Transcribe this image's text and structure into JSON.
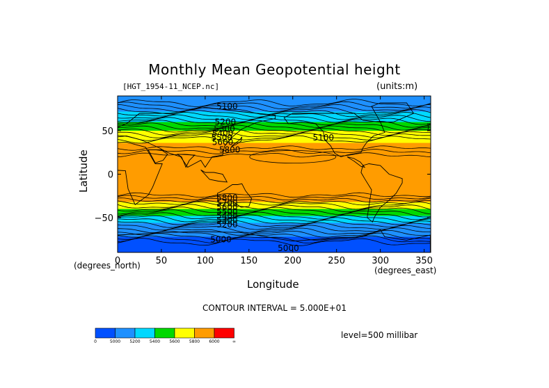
{
  "chart_data": {
    "type": "heatmap",
    "title": "Monthly Mean Geopotential height",
    "dataset": "[HGT_1954-11_NCEP.nc]",
    "units": "(units:m)",
    "xlabel": "Longitude",
    "xunits": "(degrees_east)",
    "ylabel": "Latitude",
    "yunits": "(degrees_north)",
    "xlim": [
      0,
      357.5
    ],
    "ylim": [
      -90,
      90
    ],
    "xticks": [
      0,
      50,
      100,
      150,
      200,
      250,
      300,
      350
    ],
    "yticks": [
      50,
      0,
      -50
    ],
    "contour_interval": "CONTOUR INTERVAL = 5.000E+01",
    "level": "level=500 millibar",
    "bands": [
      {
        "lat_from": 90,
        "lat_to": 72,
        "color": "#1e90ff"
      },
      {
        "lat_from": 72,
        "lat_to": 60,
        "color": "#00d8ff"
      },
      {
        "lat_from": 60,
        "lat_to": 50,
        "color": "#00d800"
      },
      {
        "lat_from": 50,
        "lat_to": 36,
        "color": "#ffff00"
      },
      {
        "lat_from": 36,
        "lat_to": -32,
        "color": "#ff9c00"
      },
      {
        "lat_from": -32,
        "lat_to": -40,
        "color": "#ffff00"
      },
      {
        "lat_from": -40,
        "lat_to": -48,
        "color": "#00d800"
      },
      {
        "lat_from": -48,
        "lat_to": -56,
        "color": "#00d8ff"
      },
      {
        "lat_from": -56,
        "lat_to": -72,
        "color": "#1e90ff"
      },
      {
        "lat_from": -72,
        "lat_to": -90,
        "color": "#0050ff"
      }
    ],
    "contour_labels": [
      {
        "text": "5100",
        "lon": 125,
        "lat": 78
      },
      {
        "text": "5200",
        "lon": 123,
        "lat": 60
      },
      {
        "text": "5300",
        "lon": 122,
        "lat": 52
      },
      {
        "text": "5400",
        "lon": 120,
        "lat": 47
      },
      {
        "text": "5500",
        "lon": 119,
        "lat": 42
      },
      {
        "text": "5600",
        "lon": 120,
        "lat": 37
      },
      {
        "text": "5800",
        "lon": 128,
        "lat": 28
      },
      {
        "text": "5100",
        "lon": 235,
        "lat": 42
      },
      {
        "text": "5800",
        "lon": 125,
        "lat": -27
      },
      {
        "text": "5700",
        "lon": 125,
        "lat": -33
      },
      {
        "text": "5600",
        "lon": 125,
        "lat": -38
      },
      {
        "text": "5500",
        "lon": 125,
        "lat": -43
      },
      {
        "text": "5400",
        "lon": 125,
        "lat": -48
      },
      {
        "text": "5300",
        "lon": 125,
        "lat": -53
      },
      {
        "text": "5200",
        "lon": 125,
        "lat": -58
      },
      {
        "text": "5000",
        "lon": 118,
        "lat": -75
      },
      {
        "text": "5000",
        "lon": 195,
        "lat": -85
      }
    ],
    "colorbar": {
      "colors": [
        "#0050ff",
        "#1e90ff",
        "#00d8ff",
        "#00d800",
        "#ffff00",
        "#ff9c00",
        "#ff0000"
      ],
      "labels": [
        "0",
        "5000",
        "5200",
        "5400",
        "5600",
        "5800",
        "6000",
        "∞"
      ]
    }
  }
}
